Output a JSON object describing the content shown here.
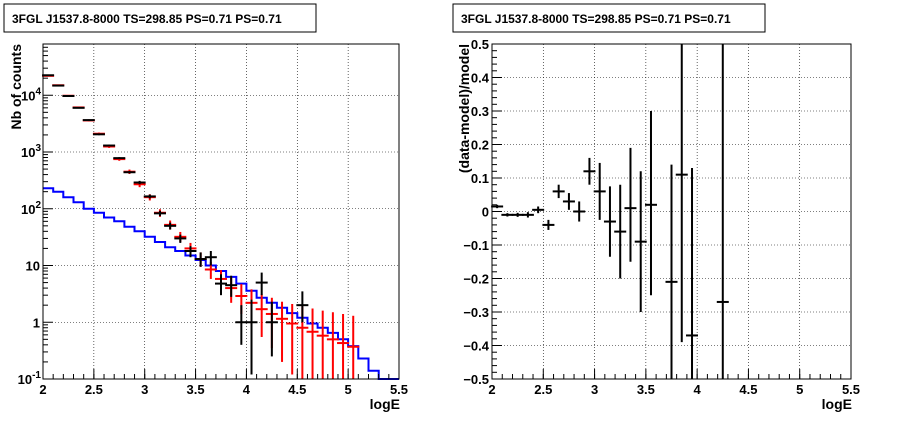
{
  "chart_data": [
    {
      "type": "scatter",
      "title": "3FGL J1537.8-8000 TS=298.85 PS=0.71 PS=0.71",
      "xlabel": "logE",
      "ylabel": "Nb of counts",
      "xlim": [
        2,
        5.5
      ],
      "ylim": [
        0.1,
        80000
      ],
      "yscale": "log",
      "grid": true,
      "x_ticks": [
        "2",
        "2.5",
        "3",
        "3.5",
        "4",
        "4.5",
        "5",
        "5.5"
      ],
      "y_ticks": [
        {
          "v": 0.1,
          "label": "10",
          "exp": "-1"
        },
        {
          "v": 1,
          "label": "1",
          "exp": ""
        },
        {
          "v": 10,
          "label": "10",
          "exp": ""
        },
        {
          "v": 100,
          "label": "10",
          "exp": "2"
        },
        {
          "v": 1000,
          "label": "10",
          "exp": "3"
        },
        {
          "v": 10000,
          "label": "10",
          "exp": "4"
        }
      ],
      "series": [
        {
          "color": "#0000ff",
          "style": "step",
          "edges": [
            2.0,
            2.1,
            2.2,
            2.3,
            2.4,
            2.5,
            2.6,
            2.7,
            2.8,
            2.9,
            3.0,
            3.1,
            3.2,
            3.3,
            3.4,
            3.5,
            3.6,
            3.7,
            3.8,
            3.9,
            4.0,
            4.1,
            4.2,
            4.3,
            4.4,
            4.5,
            4.6,
            4.7,
            4.8,
            4.9,
            5.0,
            5.1,
            5.2,
            5.3,
            5.4,
            5.5
          ],
          "values": [
            230,
            200,
            160,
            130,
            100,
            85,
            70,
            60,
            48,
            40,
            32,
            26,
            21,
            18,
            15,
            12.5,
            10,
            8,
            6.3,
            4.8,
            3.6,
            2.7,
            2.2,
            1.8,
            1.45,
            1.2,
            0.95,
            0.8,
            0.65,
            0.5,
            0.38,
            0.23,
            0.14,
            0.1,
            0.1
          ]
        },
        {
          "color": "#ff0000",
          "style": "points",
          "points": [
            {
              "x": 2.05,
              "y": 22000,
              "lo": 21500,
              "hi": 22500
            },
            {
              "x": 2.15,
              "y": 15000,
              "lo": 14700,
              "hi": 15300
            },
            {
              "x": 2.25,
              "y": 9800,
              "lo": 9600,
              "hi": 10000
            },
            {
              "x": 2.35,
              "y": 6100,
              "lo": 5900,
              "hi": 6300
            },
            {
              "x": 2.45,
              "y": 3600,
              "lo": 3450,
              "hi": 3750
            },
            {
              "x": 2.55,
              "y": 2100,
              "lo": 2000,
              "hi": 2200
            },
            {
              "x": 2.65,
              "y": 1250,
              "lo": 1180,
              "hi": 1320
            },
            {
              "x": 2.75,
              "y": 750,
              "lo": 700,
              "hi": 800
            },
            {
              "x": 2.85,
              "y": 450,
              "lo": 410,
              "hi": 490
            },
            {
              "x": 2.95,
              "y": 270,
              "lo": 240,
              "hi": 300
            },
            {
              "x": 3.05,
              "y": 160,
              "lo": 140,
              "hi": 180
            },
            {
              "x": 3.15,
              "y": 85,
              "lo": 72,
              "hi": 98
            },
            {
              "x": 3.25,
              "y": 52,
              "lo": 43,
              "hi": 62
            },
            {
              "x": 3.35,
              "y": 32,
              "lo": 26,
              "hi": 39
            },
            {
              "x": 3.45,
              "y": 20,
              "lo": 15.5,
              "hi": 25
            },
            {
              "x": 3.55,
              "y": 13,
              "lo": 9.5,
              "hi": 17
            },
            {
              "x": 3.65,
              "y": 8.5,
              "lo": 5.8,
              "hi": 11.5
            },
            {
              "x": 3.75,
              "y": 5.8,
              "lo": 3.6,
              "hi": 8.3
            },
            {
              "x": 3.85,
              "y": 4.0,
              "lo": 2.2,
              "hi": 6.1
            },
            {
              "x": 3.95,
              "y": 2.9,
              "lo": 1.4,
              "hi": 4.7
            },
            {
              "x": 4.05,
              "y": 2.2,
              "lo": 0.9,
              "hi": 3.8
            },
            {
              "x": 4.15,
              "y": 1.7,
              "lo": 0.55,
              "hi": 3.1
            },
            {
              "x": 4.25,
              "y": 1.4,
              "lo": 0.35,
              "hi": 2.7
            },
            {
              "x": 4.35,
              "y": 1.15,
              "lo": 0.2,
              "hi": 2.3
            },
            {
              "x": 4.45,
              "y": 0.95,
              "lo": 0.12,
              "hi": 2.1
            },
            {
              "x": 4.55,
              "y": 0.8,
              "lo": 0.1,
              "hi": 1.9
            },
            {
              "x": 4.65,
              "y": 0.68,
              "lo": 0.1,
              "hi": 1.75
            },
            {
              "x": 4.75,
              "y": 0.58,
              "lo": 0.1,
              "hi": 1.6
            },
            {
              "x": 4.85,
              "y": 0.5,
              "lo": 0.1,
              "hi": 1.5
            },
            {
              "x": 4.95,
              "y": 0.43,
              "lo": 0.1,
              "hi": 1.4
            },
            {
              "x": 5.05,
              "y": 0.37,
              "lo": 0.1,
              "hi": 1.3
            }
          ]
        },
        {
          "color": "#000000",
          "style": "points",
          "points": [
            {
              "x": 2.05,
              "y": 22500,
              "lo": 22000,
              "hi": 23000
            },
            {
              "x": 2.15,
              "y": 14800,
              "lo": 14500,
              "hi": 15100
            },
            {
              "x": 2.25,
              "y": 9700,
              "lo": 9500,
              "hi": 9900
            },
            {
              "x": 2.35,
              "y": 6000,
              "lo": 5850,
              "hi": 6150
            },
            {
              "x": 2.45,
              "y": 3650,
              "lo": 3550,
              "hi": 3750
            },
            {
              "x": 2.55,
              "y": 2050,
              "lo": 1980,
              "hi": 2120
            },
            {
              "x": 2.65,
              "y": 1300,
              "lo": 1250,
              "hi": 1350
            },
            {
              "x": 2.75,
              "y": 780,
              "lo": 750,
              "hi": 810
            },
            {
              "x": 2.85,
              "y": 440,
              "lo": 420,
              "hi": 460
            },
            {
              "x": 2.95,
              "y": 290,
              "lo": 270,
              "hi": 310
            },
            {
              "x": 3.05,
              "y": 165,
              "lo": 152,
              "hi": 178
            },
            {
              "x": 3.15,
              "y": 83,
              "lo": 74,
              "hi": 92
            },
            {
              "x": 3.25,
              "y": 50,
              "lo": 43,
              "hi": 57
            },
            {
              "x": 3.35,
              "y": 30,
              "lo": 25,
              "hi": 35
            },
            {
              "x": 3.45,
              "y": 18,
              "lo": 14,
              "hi": 22
            },
            {
              "x": 3.55,
              "y": 13,
              "lo": 9.5,
              "hi": 17
            },
            {
              "x": 3.65,
              "y": 14,
              "lo": 10,
              "hi": 18
            },
            {
              "x": 3.75,
              "y": 4.8,
              "lo": 3,
              "hi": 7
            },
            {
              "x": 3.85,
              "y": 4.5,
              "lo": 2.8,
              "hi": 6.6
            },
            {
              "x": 3.95,
              "y": 1.0,
              "lo": 0.4,
              "hi": 2.0
            },
            {
              "x": 4.05,
              "y": 1.0,
              "lo": 0.12,
              "hi": 2.5
            },
            {
              "x": 4.15,
              "y": 5.0,
              "lo": 3.0,
              "hi": 7.5
            },
            {
              "x": 4.25,
              "y": 1.0,
              "lo": 0.25,
              "hi": 2.3
            },
            {
              "x": 4.55,
              "y": 2.0,
              "lo": 1.0,
              "hi": 3.5
            }
          ]
        }
      ]
    },
    {
      "type": "scatter",
      "title": "3FGL J1537.8-8000 TS=298.85 PS=0.71 PS=0.71",
      "xlabel": "logE",
      "ylabel": "(data-model)/model",
      "xlim": [
        2,
        5.5
      ],
      "ylim": [
        -0.5,
        0.5
      ],
      "grid": true,
      "x_ticks": [
        "2",
        "2.5",
        "3",
        "3.5",
        "4",
        "4.5",
        "5",
        "5.5"
      ],
      "y_ticks": [
        "−0.5",
        "−0.4",
        "−0.3",
        "−0.2",
        "−0.1",
        "0",
        "0.1",
        "0.2",
        "0.3",
        "0.4",
        "0.5"
      ],
      "series": [
        {
          "color": "#000000",
          "style": "points",
          "points": [
            {
              "x": 2.05,
              "y": 0.015,
              "lo": 0.01,
              "hi": 0.02
            },
            {
              "x": 2.15,
              "y": -0.01,
              "lo": -0.015,
              "hi": -0.005
            },
            {
              "x": 2.25,
              "y": -0.01,
              "lo": -0.016,
              "hi": -0.004
            },
            {
              "x": 2.35,
              "y": -0.01,
              "lo": -0.018,
              "hi": -0.002
            },
            {
              "x": 2.45,
              "y": 0.005,
              "lo": -0.005,
              "hi": 0.015
            },
            {
              "x": 2.55,
              "y": -0.04,
              "lo": -0.055,
              "hi": -0.025
            },
            {
              "x": 2.65,
              "y": 0.06,
              "lo": 0.04,
              "hi": 0.08
            },
            {
              "x": 2.75,
              "y": 0.03,
              "lo": 0.005,
              "hi": 0.055
            },
            {
              "x": 2.85,
              "y": 0.0,
              "lo": -0.03,
              "hi": 0.03
            },
            {
              "x": 2.95,
              "y": 0.12,
              "lo": 0.08,
              "hi": 0.16
            },
            {
              "x": 3.05,
              "y": 0.06,
              "lo": -0.025,
              "hi": 0.145
            },
            {
              "x": 3.15,
              "y": -0.03,
              "lo": -0.135,
              "hi": 0.075
            },
            {
              "x": 3.25,
              "y": -0.06,
              "lo": -0.2,
              "hi": 0.08
            },
            {
              "x": 3.35,
              "y": 0.01,
              "lo": -0.15,
              "hi": 0.19
            },
            {
              "x": 3.45,
              "y": -0.09,
              "lo": -0.3,
              "hi": 0.12
            },
            {
              "x": 3.55,
              "y": 0.02,
              "lo": -0.25,
              "hi": 0.3
            },
            {
              "x": 3.75,
              "y": -0.21,
              "lo": -0.5,
              "hi": 0.14
            },
            {
              "x": 3.85,
              "y": 0.11,
              "lo": -0.39,
              "hi": 0.5
            },
            {
              "x": 3.95,
              "y": -0.37,
              "lo": -0.5,
              "hi": 0.13
            },
            {
              "x": 4.25,
              "y": -0.27,
              "lo": -0.5,
              "hi": 0.5
            }
          ]
        }
      ]
    }
  ]
}
